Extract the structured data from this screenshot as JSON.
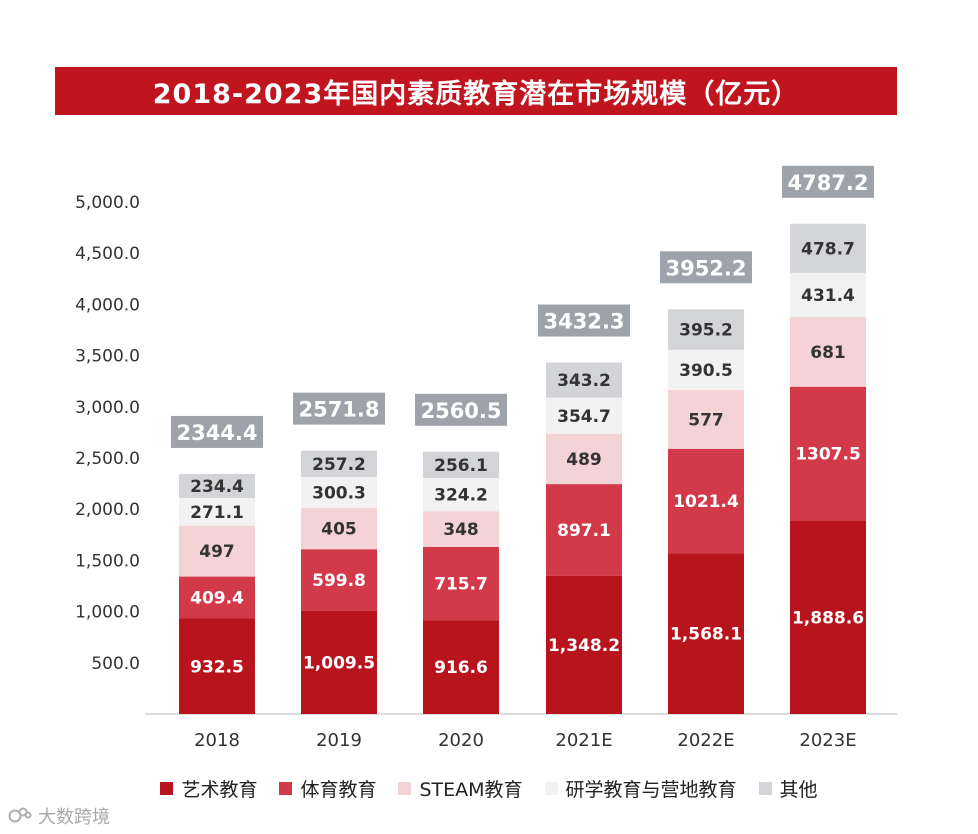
{
  "chart_data": {
    "type": "bar",
    "stacked": true,
    "title": "2018-2023年国内素质教育潜在市场规模（亿元）",
    "categories": [
      "2018",
      "2019",
      "2020",
      "2021E",
      "2022E",
      "2023E"
    ],
    "series": [
      {
        "name": "艺术教育",
        "color": "#b8141e",
        "values": [
          932.5,
          1009.5,
          916.6,
          1348.2,
          1568.1,
          1888.6
        ],
        "labels": [
          "932.5",
          "1,009.5",
          "916.6",
          "1,348.2",
          "1,568.1",
          "1,888.6"
        ],
        "label_color": "#ffffff"
      },
      {
        "name": "体育教育",
        "color": "#d23a4a",
        "values": [
          409.4,
          599.8,
          715.7,
          897.1,
          1021.4,
          1307.5
        ],
        "labels": [
          "409.4",
          "599.8",
          "715.7",
          "897.1",
          "1021.4",
          "1307.5"
        ],
        "label_color": "#ffffff"
      },
      {
        "name": "STEAM教育",
        "color": "#f3d3d6",
        "values": [
          497,
          405,
          348,
          489,
          577,
          681
        ],
        "labels": [
          "497",
          "405",
          "348",
          "489",
          "577",
          "681"
        ],
        "label_color": "#333333"
      },
      {
        "name": "研学教育与营地教育",
        "color": "#f2f2f3",
        "values": [
          271.1,
          300.3,
          324.2,
          354.7,
          390.5,
          431.4
        ],
        "labels": [
          "271.1",
          "300.3",
          "324.2",
          "354.7",
          "390.5",
          "431.4"
        ],
        "label_color": "#333333"
      },
      {
        "name": "其他",
        "color": "#d3d4d8",
        "values": [
          234.4,
          257.2,
          256.1,
          343.2,
          395.2,
          478.7
        ],
        "labels": [
          "234.4",
          "257.2",
          "256.1",
          "343.2",
          "395.2",
          "478.7"
        ],
        "label_color": "#333333"
      }
    ],
    "totals": [
      "2344.4",
      "2571.8",
      "2560.5",
      "3432.3",
      "3952.2",
      "4787.2"
    ],
    "total_box_color": "#9ea3a9",
    "y_ticks": [
      "500.0",
      "1,000.0",
      "1,500.0",
      "2,000.0",
      "2,500.0",
      "3,000.0",
      "3,500.0",
      "4,000.0",
      "4,500.0",
      "5,000.0"
    ],
    "ylim": [
      0,
      5000
    ],
    "xlabel": "",
    "ylabel": "",
    "grid": false,
    "legend_position": "bottom"
  },
  "watermark": "大数跨境"
}
